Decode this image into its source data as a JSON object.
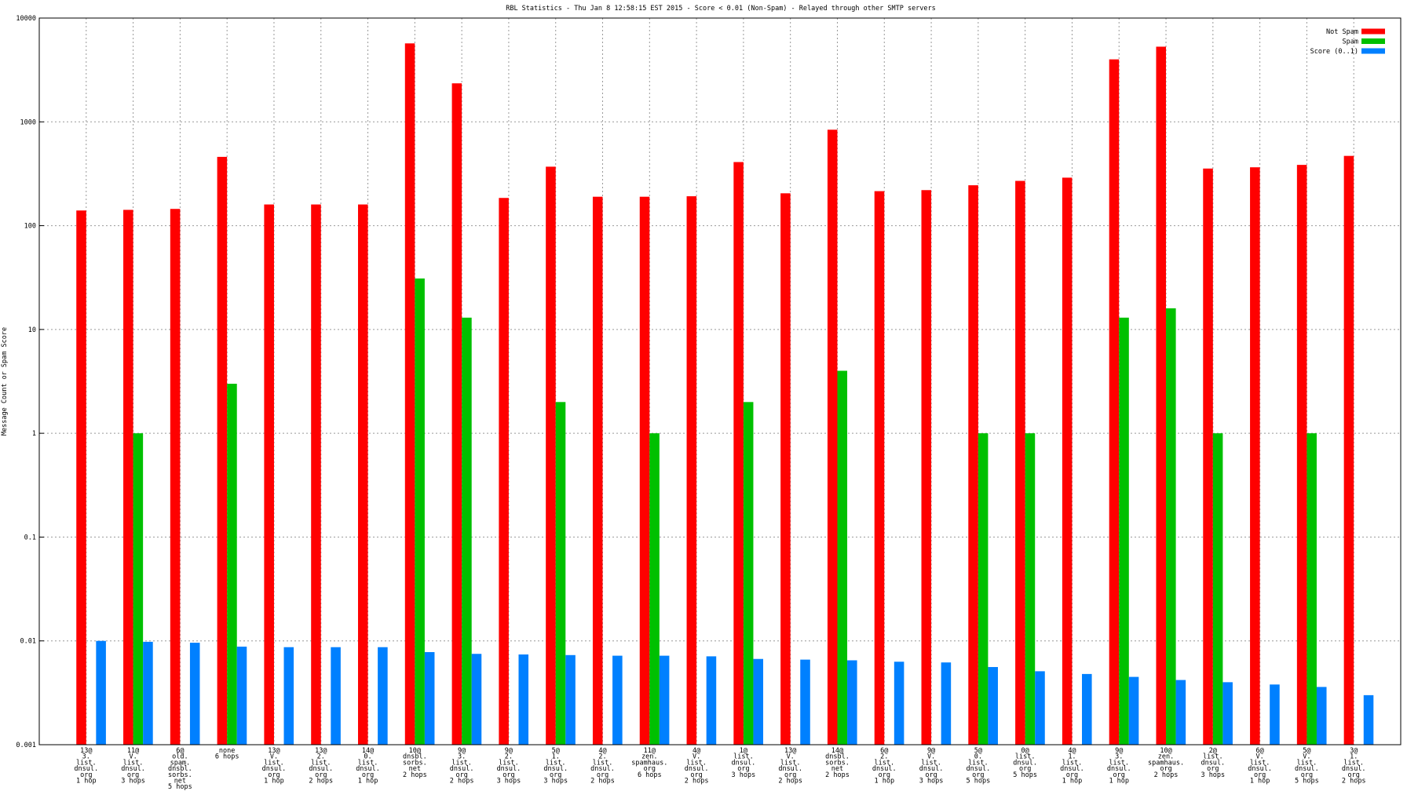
{
  "chart_data": {
    "type": "bar",
    "title": "RBL Statistics - Thu Jan  8 12:58:15 EST 2015 - Score < 0.01 (Non-Spam) - Relayed through other SMTP servers",
    "y_label": "Message Count or Spam Score",
    "log_scale": true,
    "grid": true,
    "legend": "top-right",
    "ylim": [
      0.001,
      10000
    ],
    "yticks": [
      0.001,
      0.01,
      0.1,
      1,
      10,
      100,
      1000,
      10000
    ],
    "categories": [
      "13@\n3.\nlist.\ndnsul.\norg\n1 hop",
      "11@\nV.\nlist.\ndnsul.\norg\n3 hops",
      "6@\nold.\nspam.\ndnsbl.\nsorbs.\nnet\n5 hops",
      "none\n6 hops",
      "13@\nV.\nlist.\ndnsul.\norg\n1 hop",
      "13@\n2.\nlist.\ndnsul.\norg\n2 hops",
      "14@\n0.\nlist.\ndnsul.\norg\n1 hop",
      "10@\ndnsbl.\nsorbs.\nnet\n2 hops",
      "9@\n3.\nlist.\ndnsul.\norg\n2 hops",
      "9@\n2.\nlist.\ndnsul.\norg\n3 hops",
      "5@\n1.\nlist.\ndnsul.\norg\n3 hops",
      "4@\n2.\nlist.\ndnsul.\norg\n2 hops",
      "11@\nzen.\nspamhaus.\norg\n6 hops",
      "4@\nV.\nlist.\ndnsul.\norg\n2 hops",
      "1@\nlist.\ndnsul.\norg\n3 hops",
      "13@\nV.\nlist.\ndnsul.\norg\n2 hops",
      "14@\ndnsbl.\nsorbs.\nnet\n2 hops",
      "6@\n2.\nlist.\ndnsul.\norg\n1 hop",
      "9@\nV.\nlist.\ndnsul.\norg\n3 hops",
      "5@\n0.\nlist.\ndnsul.\norg\n5 hops",
      "0@\nlist.\ndnsul.\norg\n5 hops",
      "4@\n1.\nlist.\ndnsul.\norg\n1 hop",
      "9@\n3.\nlist.\ndnsul.\norg\n1 hop",
      "10@\nzen.\nspamhaus.\norg\n2 hops",
      "2@\nlist.\ndnsul.\norg\n3 hops",
      "6@\nV.\nlist.\ndnsul.\norg\n1 hop",
      "5@\nV.\nlist.\ndnsul.\norg\n5 hops",
      "3@\n1.\nlist.\ndnsul.\norg\n2 hops"
    ],
    "series": [
      {
        "name": "Not Spam",
        "color": "#ff0000",
        "values": [
          140,
          142,
          145,
          460,
          160,
          160,
          160,
          5700,
          2350,
          185,
          370,
          190,
          190,
          192,
          410,
          205,
          840,
          215,
          220,
          245,
          270,
          290,
          4000,
          5300,
          355,
          365,
          385,
          470
        ]
      },
      {
        "name": "Spam",
        "color": "#00c000",
        "values": [
          null,
          1,
          null,
          3,
          null,
          null,
          null,
          31,
          13,
          null,
          2,
          null,
          1,
          null,
          2,
          null,
          4,
          null,
          null,
          1,
          1,
          null,
          13,
          16,
          1,
          null,
          1,
          null
        ]
      },
      {
        "name": "Score (0..1)",
        "color": "#0080ff",
        "values": [
          0.01,
          0.0098,
          0.0096,
          0.0088,
          0.0087,
          0.0087,
          0.0087,
          0.0078,
          0.0075,
          0.0074,
          0.0073,
          0.0072,
          0.0072,
          0.0071,
          0.0067,
          0.0066,
          0.0065,
          0.0063,
          0.0062,
          0.0056,
          0.0051,
          0.0048,
          0.0045,
          0.0042,
          0.004,
          0.0038,
          0.0036,
          0.003
        ]
      }
    ]
  }
}
